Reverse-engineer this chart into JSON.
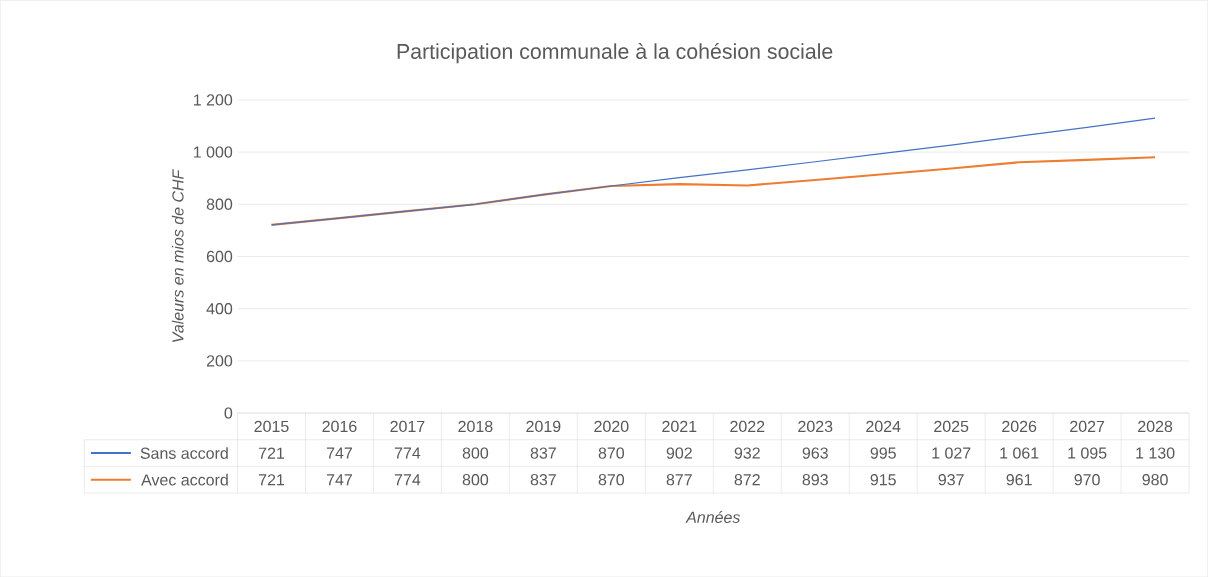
{
  "chart_data": {
    "type": "line",
    "title": "Participation communale à la cohésion sociale",
    "xlabel": "Années",
    "ylabel": "Valeurs en mios de CHF",
    "categories": [
      "2015",
      "2016",
      "2017",
      "2018",
      "2019",
      "2020",
      "2021",
      "2022",
      "2023",
      "2024",
      "2025",
      "2026",
      "2027",
      "2028"
    ],
    "series": [
      {
        "name": "Sans accord",
        "color": "#4472c4",
        "values": [
          721,
          747,
          774,
          800,
          837,
          870,
          902,
          932,
          963,
          995,
          1027,
          1061,
          1095,
          1130
        ],
        "value_labels": [
          "721",
          "747",
          "774",
          "800",
          "837",
          "870",
          "902",
          "932",
          "963",
          "995",
          "1 027",
          "1 061",
          "1 095",
          "1 130"
        ]
      },
      {
        "name": "Avec accord",
        "color": "#ed7d31",
        "values": [
          721,
          747,
          774,
          800,
          837,
          870,
          877,
          872,
          893,
          915,
          937,
          961,
          970,
          980
        ],
        "value_labels": [
          "721",
          "747",
          "774",
          "800",
          "837",
          "870",
          "877",
          "872",
          "893",
          "915",
          "937",
          "961",
          "970",
          "980"
        ]
      }
    ],
    "ylim": [
      0,
      1200
    ],
    "yticks": [
      0,
      200,
      400,
      600,
      800,
      {
        "value": 1000,
        "label": "1 000"
      },
      {
        "value": 1200,
        "label": "1 200"
      }
    ],
    "grid": "y",
    "legend": "bottom"
  }
}
